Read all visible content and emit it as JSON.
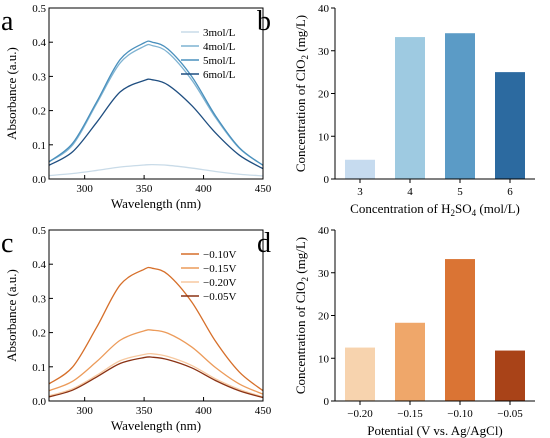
{
  "chart_data": [
    {
      "panel_label": "a",
      "type": "line",
      "xlabel": "Wavelength (nm)",
      "ylabel": "Absorbance (a.u.)",
      "xlim": [
        270,
        450
      ],
      "ylim": [
        0,
        0.5
      ],
      "xticks": [
        300,
        350,
        400,
        450
      ],
      "xtick_labels": [
        "300",
        "350",
        "400",
        "450"
      ],
      "yticks": [
        0.0,
        0.1,
        0.2,
        0.3,
        0.4,
        0.5
      ],
      "ytick_labels": [
        "0.0",
        "0.1",
        "0.2",
        "0.3",
        "0.4",
        "0.5"
      ],
      "legend_position": "top-right",
      "x": [
        270,
        290,
        310,
        330,
        350,
        357,
        370,
        390,
        410,
        430,
        450
      ],
      "series": [
        {
          "name": "3mol/L",
          "color": "#c9dbe8",
          "values": [
            0.01,
            0.016,
            0.025,
            0.035,
            0.041,
            0.042,
            0.04,
            0.032,
            0.022,
            0.014,
            0.009
          ]
        },
        {
          "name": "4mol/L",
          "color": "#7fb3d2",
          "values": [
            0.05,
            0.1,
            0.22,
            0.34,
            0.388,
            0.39,
            0.37,
            0.29,
            0.18,
            0.09,
            0.04
          ]
        },
        {
          "name": "5mol/L",
          "color": "#4a90bd",
          "values": [
            0.05,
            0.105,
            0.225,
            0.35,
            0.398,
            0.4,
            0.38,
            0.3,
            0.185,
            0.092,
            0.04
          ]
        },
        {
          "name": "6mol/L",
          "color": "#1f4e80",
          "values": [
            0.04,
            0.08,
            0.165,
            0.255,
            0.288,
            0.29,
            0.275,
            0.215,
            0.135,
            0.07,
            0.03
          ]
        }
      ]
    },
    {
      "panel_label": "b",
      "type": "bar",
      "xlabel_parts": [
        "Concentration of H",
        "2",
        "SO",
        "4",
        " (mol/L)"
      ],
      "ylabel_parts": [
        "Concentration of ClO",
        "2",
        " (mg/L)"
      ],
      "categories": [
        "3",
        "4",
        "5",
        "6"
      ],
      "values": [
        4.5,
        33.2,
        34.1,
        25.0
      ],
      "colors": [
        "#c6dbef",
        "#9ecae1",
        "#5b9bc6",
        "#2c6aa0"
      ],
      "ylim": [
        0,
        40
      ],
      "yticks": [
        0,
        10,
        20,
        30,
        40
      ],
      "ytick_labels": [
        "0",
        "10",
        "20",
        "30",
        "40"
      ]
    },
    {
      "panel_label": "c",
      "type": "line",
      "xlabel": "Wavelength (nm)",
      "ylabel": "Absorbance (a.u.)",
      "xlim": [
        270,
        450
      ],
      "ylim": [
        0,
        0.5
      ],
      "xticks": [
        300,
        350,
        400,
        450
      ],
      "xtick_labels": [
        "300",
        "350",
        "400",
        "450"
      ],
      "yticks": [
        0.0,
        0.1,
        0.2,
        0.3,
        0.4,
        0.5
      ],
      "ytick_labels": [
        "0.0",
        "0.1",
        "0.2",
        "0.3",
        "0.4",
        "0.5"
      ],
      "legend_position": "top-right",
      "x": [
        270,
        290,
        310,
        330,
        350,
        357,
        370,
        390,
        410,
        430,
        450
      ],
      "series": [
        {
          "name": "−0.10V",
          "color": "#d66f2a",
          "values": [
            0.05,
            0.1,
            0.215,
            0.34,
            0.385,
            0.388,
            0.37,
            0.29,
            0.175,
            0.085,
            0.03
          ]
        },
        {
          "name": "−0.15V",
          "color": "#ec9b5a",
          "values": [
            0.03,
            0.058,
            0.115,
            0.178,
            0.205,
            0.207,
            0.198,
            0.158,
            0.098,
            0.05,
            0.02
          ]
        },
        {
          "name": "−0.20V",
          "color": "#f7c9a0",
          "values": [
            0.015,
            0.036,
            0.075,
            0.118,
            0.136,
            0.138,
            0.13,
            0.104,
            0.065,
            0.034,
            0.012
          ]
        },
        {
          "name": "−0.05V",
          "color": "#8a3214",
          "values": [
            0.012,
            0.032,
            0.07,
            0.11,
            0.127,
            0.128,
            0.121,
            0.097,
            0.06,
            0.03,
            0.01
          ]
        }
      ]
    },
    {
      "panel_label": "d",
      "type": "bar",
      "xlabel": "Potential (V vs. Ag/AgCl)",
      "ylabel_parts": [
        "Concentration of ClO",
        "2",
        " (mg/L)"
      ],
      "categories": [
        "−0.20",
        "−0.15",
        "−0.10",
        "−0.05"
      ],
      "values": [
        12.5,
        18.3,
        33.2,
        11.8
      ],
      "colors": [
        "#f7d3ae",
        "#efa76a",
        "#da7434",
        "#a94318"
      ],
      "ylim": [
        0,
        40
      ],
      "yticks": [
        0,
        10,
        20,
        30,
        40
      ],
      "ytick_labels": [
        "0",
        "10",
        "20",
        "30",
        "40"
      ]
    }
  ]
}
